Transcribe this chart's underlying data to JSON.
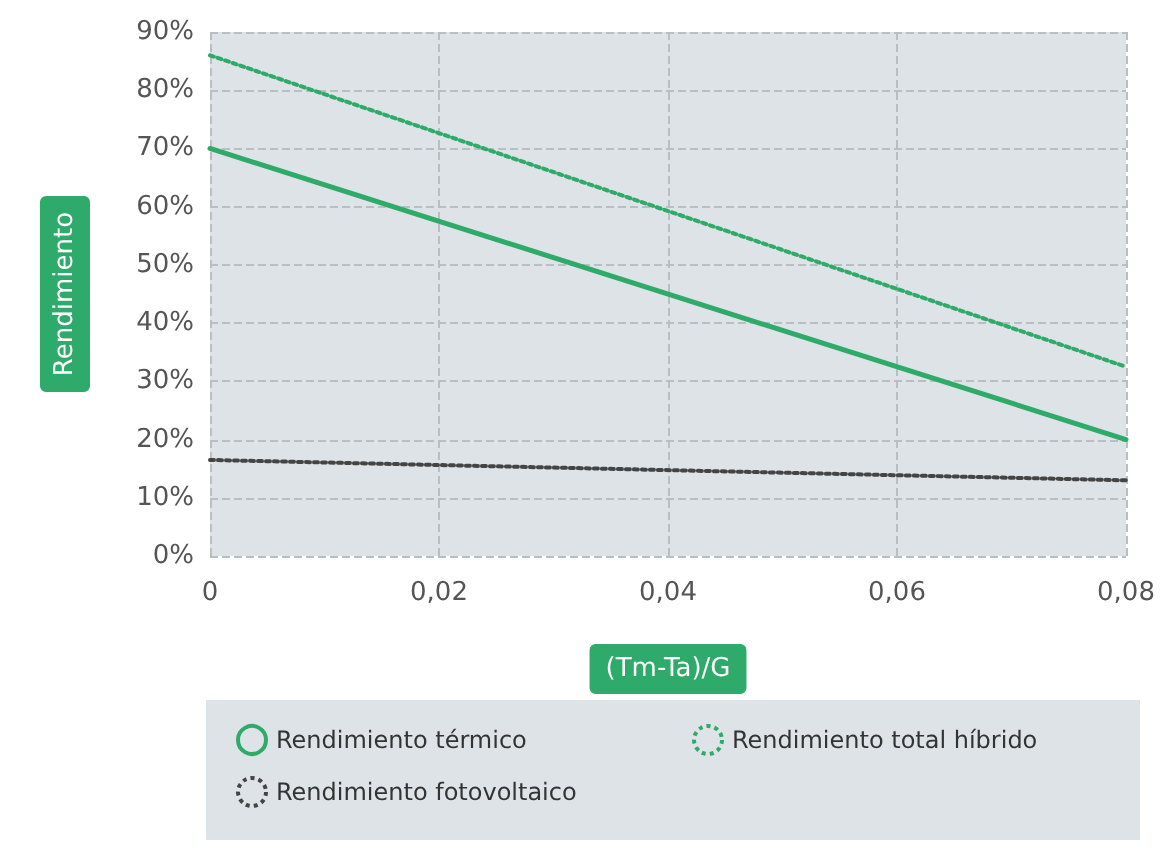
{
  "chart_data": {
    "type": "line",
    "xlabel": "(Tm-Ta)/G",
    "ylabel": "Rendimiento",
    "xlim": [
      0,
      0.08
    ],
    "xticks": [
      0,
      {
        "value": 0.02,
        "label": "0,02"
      },
      {
        "value": 0.04,
        "label": "0,04"
      },
      {
        "value": 0.06,
        "label": "0,06"
      },
      {
        "value": 0.08,
        "label": "0,08"
      }
    ],
    "ylim": [
      0,
      90
    ],
    "yticks": [
      {
        "value": 0,
        "label": "0%"
      },
      {
        "value": 10,
        "label": "10%"
      },
      {
        "value": 20,
        "label": "20%"
      },
      {
        "value": 30,
        "label": "30%"
      },
      {
        "value": 40,
        "label": "40%"
      },
      {
        "value": 50,
        "label": "50%"
      },
      {
        "value": 60,
        "label": "60%"
      },
      {
        "value": 70,
        "label": "70%"
      },
      {
        "value": 80,
        "label": "80%"
      },
      {
        "value": 90,
        "label": "90%"
      }
    ],
    "x": [
      0,
      0.08
    ],
    "series": [
      {
        "name": "Rendimiento térmico",
        "color": "#2eaa6a",
        "values": [
          70,
          20
        ],
        "line_style": "solid"
      },
      {
        "name": "Rendimiento total híbrido",
        "color": "#2eaa6a",
        "values": [
          86,
          32.5
        ],
        "line_style": "dotted"
      },
      {
        "name": "Rendimiento fotovoltaico",
        "color": "#444444",
        "values": [
          16.5,
          13
        ],
        "line_style": "dotted"
      }
    ],
    "grid": true,
    "legend": "bottom",
    "marker": "none"
  }
}
